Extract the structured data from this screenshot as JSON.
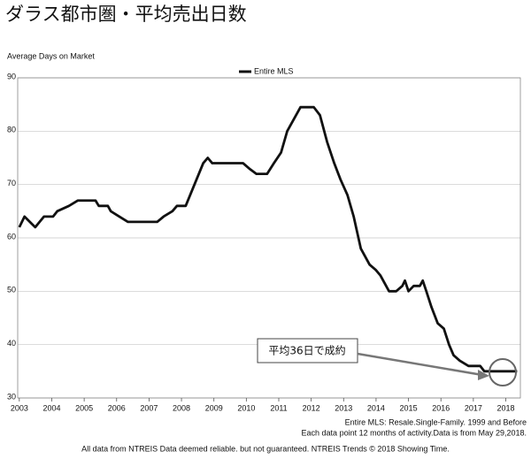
{
  "chart_data": {
    "type": "line",
    "title": "ダラス都市圏・平均売出日数",
    "y_label": "Average Days on Market",
    "x": [
      2003.0,
      2003.16,
      2003.49,
      2003.76,
      2004.04,
      2004.17,
      2004.53,
      2004.8,
      2005.35,
      2005.45,
      2005.73,
      2005.82,
      2006.08,
      2006.35,
      2007.25,
      2007.45,
      2007.72,
      2007.86,
      2008.13,
      2008.67,
      2008.81,
      2008.95,
      2009.9,
      2010.09,
      2010.31,
      2010.64,
      2010.85,
      2011.07,
      2011.26,
      2011.67,
      2012.08,
      2012.27,
      2012.49,
      2012.71,
      2012.9,
      2013.12,
      2013.31,
      2013.53,
      2013.8,
      2013.99,
      2014.13,
      2014.4,
      2014.62,
      2014.81,
      2014.89,
      2015.0,
      2015.16,
      2015.35,
      2015.44,
      2015.55,
      2015.71,
      2015.9,
      2016.09,
      2016.25,
      2016.39,
      2016.58,
      2016.85,
      2017.21,
      2017.34,
      2018.35
    ],
    "series": [
      {
        "name": "Entire MLS",
        "color": "#111111",
        "values": [
          62,
          64,
          62,
          64,
          64,
          65,
          66,
          67,
          67,
          66,
          66,
          65,
          64,
          63,
          63,
          64,
          65,
          66,
          66,
          74,
          75,
          74,
          74,
          73,
          72,
          72,
          74,
          76,
          80,
          84.5,
          84.5,
          83,
          78,
          74,
          71,
          68,
          64,
          58,
          55,
          54,
          53,
          50,
          50,
          51,
          52,
          50,
          51,
          51,
          52,
          50,
          47,
          44,
          43,
          40,
          38,
          37,
          36,
          36,
          35,
          35
        ]
      }
    ],
    "xlim": [
      2002.95,
      2018.45
    ],
    "xticks": [
      2003,
      2004,
      2005,
      2006,
      2007,
      2008,
      2009,
      2010,
      2011,
      2012,
      2013,
      2014,
      2015,
      2016,
      2017,
      2018
    ],
    "ylim": [
      30,
      90
    ],
    "yticks": [
      30,
      40,
      50,
      60,
      70,
      80,
      90
    ],
    "grid": true,
    "legend": "top",
    "annotation": "平均36日で成約",
    "notes": [
      "Entire MLS: Resale.Single-Family.   1999 and Before",
      "Each data point 12 months of activity.Data is from May 29,2018.",
      "All data from NTREIS Data deemed reliable. but not guaranteed. NTREIS Trends  ©  2018 Showing Time."
    ]
  }
}
